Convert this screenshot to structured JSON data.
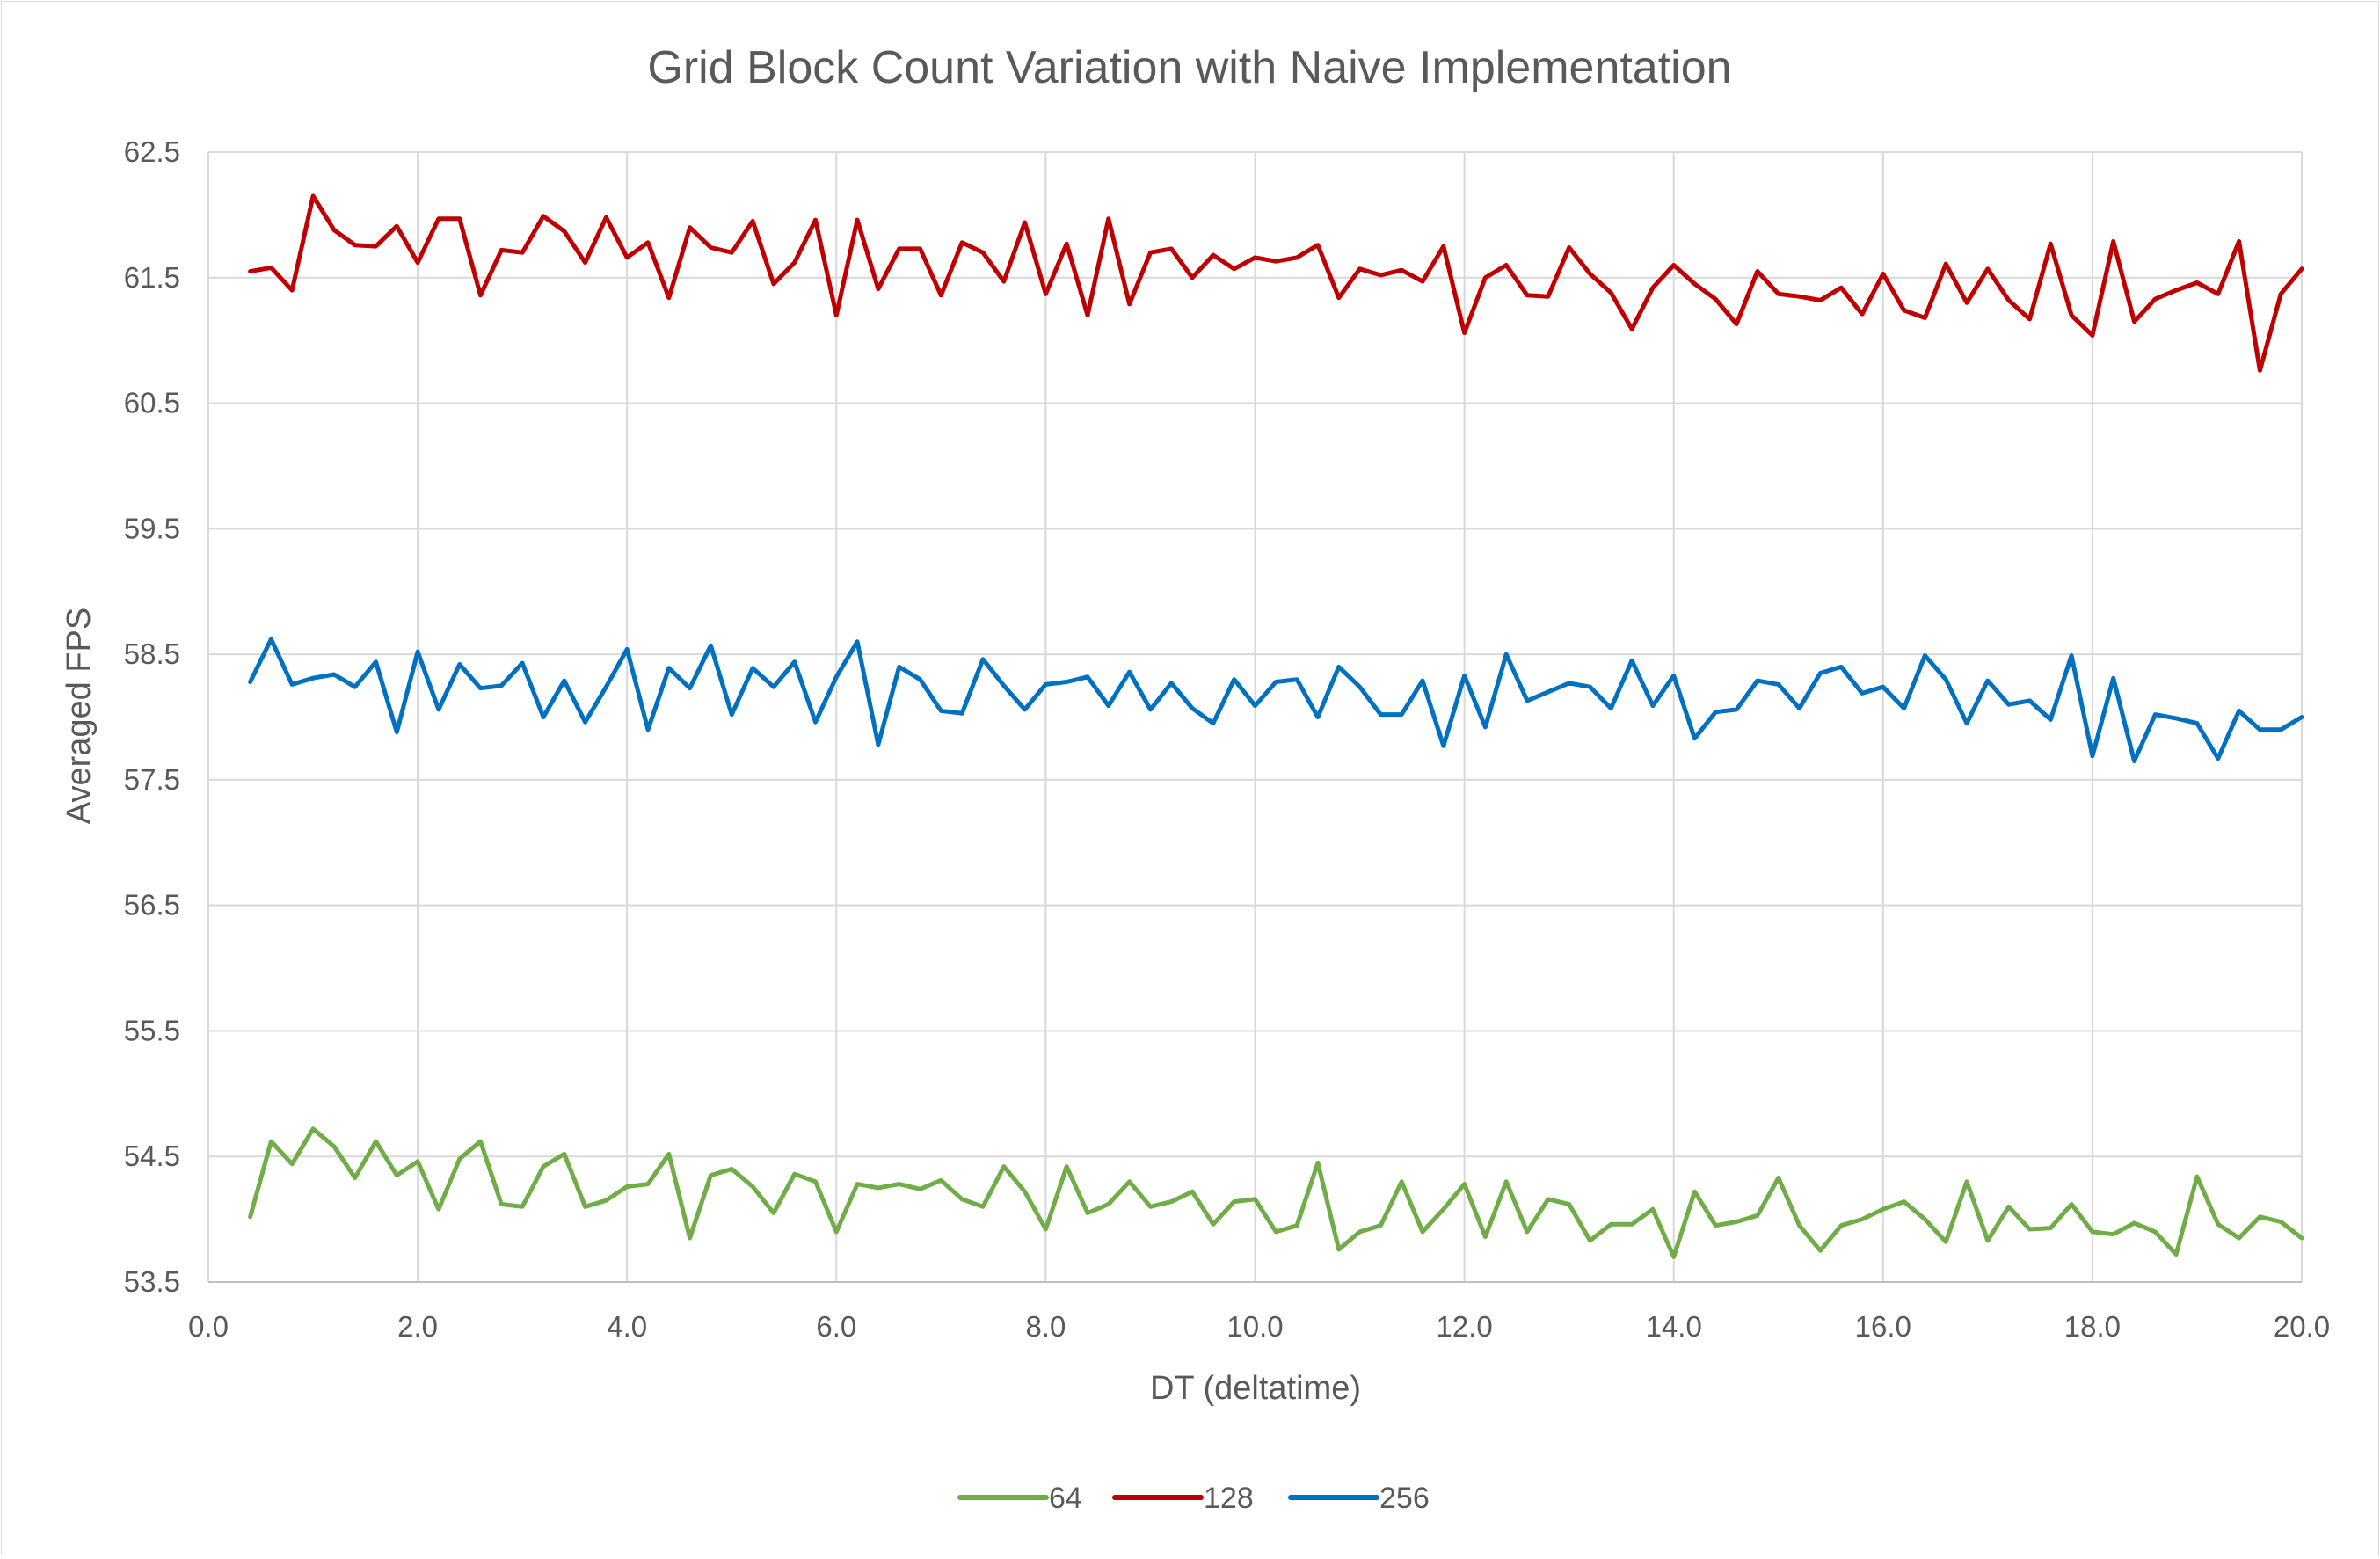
{
  "chart_data": {
    "type": "line",
    "title": "Grid Block Count Variation with Naive Implementation",
    "xlabel": "DT (deltatime)",
    "ylabel": "Averaged FPS",
    "xlim": [
      0.0,
      20.0
    ],
    "ylim": [
      53.5,
      62.5
    ],
    "xticks": [
      "0.0",
      "2.0",
      "4.0",
      "6.0",
      "8.0",
      "10.0",
      "12.0",
      "14.0",
      "16.0",
      "18.0",
      "20.0"
    ],
    "yticks": [
      "62.5",
      "61.5",
      "60.5",
      "59.5",
      "58.5",
      "57.5",
      "56.5",
      "55.5",
      "54.5",
      "53.5"
    ],
    "grid": true,
    "legend_position": "bottom",
    "x": [
      0.4,
      0.6,
      0.8,
      1.0,
      1.2,
      1.4,
      1.6,
      1.8,
      2.0,
      2.2,
      2.4,
      2.6,
      2.8,
      3.0,
      3.2,
      3.4,
      3.6,
      3.8,
      4.0,
      4.2,
      4.4,
      4.6,
      4.8,
      5.0,
      5.2,
      5.4,
      5.6,
      5.8,
      6.0,
      6.2,
      6.4,
      6.6,
      6.8,
      7.0,
      7.2,
      7.4,
      7.6,
      7.8,
      8.0,
      8.2,
      8.4,
      8.6,
      8.8,
      9.0,
      9.2,
      9.4,
      9.6,
      9.8,
      10.0,
      10.2,
      10.4,
      10.6,
      10.8,
      11.0,
      11.2,
      11.4,
      11.6,
      11.8,
      12.0,
      12.2,
      12.4,
      12.6,
      12.8,
      13.0,
      13.2,
      13.4,
      13.6,
      13.8,
      14.0,
      14.2,
      14.4,
      14.6,
      14.8,
      15.0,
      15.2,
      15.4,
      15.6,
      15.8,
      16.0,
      16.2,
      16.4,
      16.6,
      16.8,
      17.0,
      17.2,
      17.4,
      17.6,
      17.8,
      18.0,
      18.2,
      18.4,
      18.6,
      18.8,
      19.0,
      19.2,
      19.4,
      19.6,
      19.8,
      20.0
    ],
    "series": [
      {
        "name": "64",
        "color": "#70ad47",
        "values": [
          54.02,
          54.62,
          54.44,
          54.72,
          54.58,
          54.33,
          54.62,
          54.35,
          54.46,
          54.08,
          54.48,
          54.62,
          54.12,
          54.1,
          54.42,
          54.52,
          54.1,
          54.15,
          54.26,
          54.28,
          54.52,
          53.85,
          54.35,
          54.4,
          54.26,
          54.05,
          54.36,
          54.3,
          53.9,
          54.28,
          54.25,
          54.28,
          54.24,
          54.31,
          54.16,
          54.1,
          54.42,
          54.22,
          53.92,
          54.42,
          54.05,
          54.12,
          54.3,
          54.1,
          54.14,
          54.22,
          53.96,
          54.14,
          54.16,
          53.9,
          53.95,
          54.45,
          53.76,
          53.9,
          53.95,
          54.3,
          53.9,
          54.08,
          54.28,
          53.86,
          54.3,
          53.9,
          54.16,
          54.12,
          53.83,
          53.96,
          53.96,
          54.08,
          53.7,
          54.22,
          53.95,
          53.98,
          54.03,
          54.33,
          53.95,
          53.75,
          53.95,
          54.0,
          54.08,
          54.14,
          54.0,
          53.82,
          54.3,
          53.83,
          54.1,
          53.92,
          53.93,
          54.12,
          53.9,
          53.88,
          53.97,
          53.9,
          53.72,
          54.34,
          53.96,
          53.85,
          54.02,
          53.98,
          53.85
        ]
      },
      {
        "name": "128",
        "color": "#c00000",
        "values": [
          61.55,
          61.58,
          61.4,
          62.15,
          61.88,
          61.76,
          61.75,
          61.91,
          61.62,
          61.97,
          61.97,
          61.36,
          61.72,
          61.7,
          61.99,
          61.87,
          61.62,
          61.98,
          61.66,
          61.78,
          61.34,
          61.9,
          61.74,
          61.7,
          61.95,
          61.45,
          61.62,
          61.96,
          61.2,
          61.96,
          61.41,
          61.73,
          61.73,
          61.36,
          61.78,
          61.7,
          61.47,
          61.94,
          61.37,
          61.77,
          61.2,
          61.97,
          61.29,
          61.7,
          61.73,
          61.5,
          61.68,
          61.57,
          61.66,
          61.63,
          61.66,
          61.76,
          61.34,
          61.57,
          61.52,
          61.56,
          61.47,
          61.75,
          61.06,
          61.5,
          61.6,
          61.36,
          61.35,
          61.74,
          61.53,
          61.38,
          61.09,
          61.42,
          61.6,
          61.45,
          61.33,
          61.13,
          61.55,
          61.37,
          61.35,
          61.32,
          61.42,
          61.21,
          61.53,
          61.24,
          61.18,
          61.61,
          61.3,
          61.57,
          61.32,
          61.17,
          61.77,
          61.2,
          61.04,
          61.79,
          61.15,
          61.33,
          61.4,
          61.46,
          61.37,
          61.79,
          60.76,
          61.37,
          61.57
        ]
      },
      {
        "name": "256",
        "color": "#0070c0",
        "values": [
          58.28,
          58.62,
          58.26,
          58.31,
          58.34,
          58.24,
          58.44,
          57.88,
          58.52,
          58.06,
          58.42,
          58.23,
          58.25,
          58.43,
          58.0,
          58.29,
          57.96,
          58.24,
          58.54,
          57.9,
          58.39,
          58.23,
          58.57,
          58.02,
          58.39,
          58.24,
          58.44,
          57.96,
          58.32,
          58.6,
          57.78,
          58.4,
          58.3,
          58.05,
          58.03,
          58.46,
          58.25,
          58.06,
          58.26,
          58.28,
          58.32,
          58.09,
          58.36,
          58.06,
          58.27,
          58.07,
          57.95,
          58.3,
          58.09,
          58.28,
          58.3,
          58.0,
          58.4,
          58.24,
          58.02,
          58.02,
          58.29,
          57.77,
          58.33,
          57.92,
          58.5,
          58.13,
          58.2,
          58.27,
          58.24,
          58.07,
          58.45,
          58.09,
          58.33,
          57.83,
          58.04,
          58.06,
          58.29,
          58.26,
          58.07,
          58.35,
          58.4,
          58.19,
          58.24,
          58.07,
          58.49,
          58.3,
          57.95,
          58.29,
          58.1,
          58.13,
          57.98,
          58.49,
          57.69,
          58.31,
          57.65,
          58.02,
          57.99,
          57.95,
          57.67,
          58.05,
          57.9,
          57.9,
          58.0
        ]
      }
    ]
  }
}
